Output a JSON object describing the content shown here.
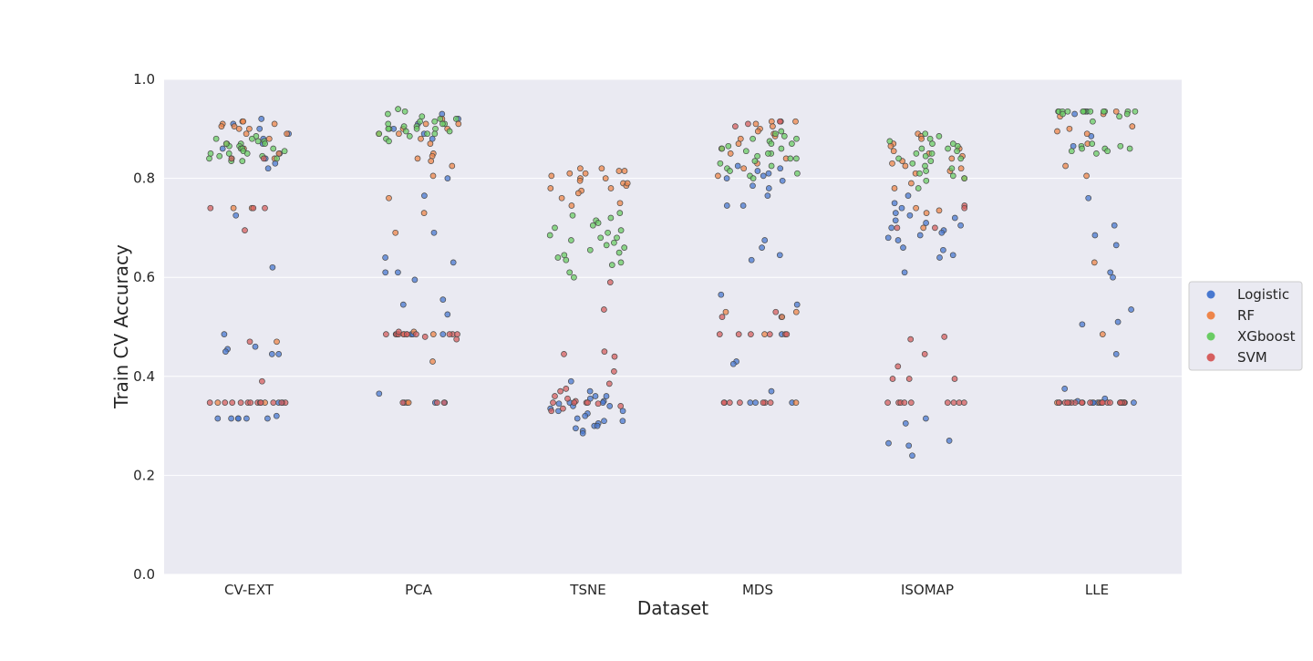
{
  "chart_data": {
    "type": "scatter",
    "kind": "strip",
    "title": "",
    "xlabel": "Dataset",
    "ylabel": "Train CV Accuracy",
    "ylim": [
      0.0,
      1.0
    ],
    "yticks": [
      0.0,
      0.2,
      0.4,
      0.6,
      0.8,
      1.0
    ],
    "grid": true,
    "legend_position": "right",
    "categories": [
      "CV-EXT",
      "PCA",
      "TSNE",
      "MDS",
      "ISOMAP",
      "LLE"
    ],
    "series": [
      {
        "name": "Logistic",
        "color": "#4878d0"
      },
      {
        "name": "RF",
        "color": "#ee854a"
      },
      {
        "name": "XGboost",
        "color": "#6acc64"
      },
      {
        "name": "SVM",
        "color": "#d65f5f"
      }
    ],
    "points": {
      "CV-EXT": {
        "Logistic": [
          0.92,
          0.91,
          0.9,
          0.89,
          0.88,
          0.87,
          0.86,
          0.85,
          0.84,
          0.83,
          0.82,
          0.725,
          0.62,
          0.485,
          0.46,
          0.455,
          0.45,
          0.445,
          0.445,
          0.32,
          0.315,
          0.315,
          0.315,
          0.315,
          0.315,
          0.315,
          0.347,
          0.347
        ],
        "RF": [
          0.915,
          0.915,
          0.91,
          0.91,
          0.905,
          0.905,
          0.9,
          0.9,
          0.89,
          0.89,
          0.88,
          0.87,
          0.86,
          0.85,
          0.84,
          0.74,
          0.74,
          0.47,
          0.347,
          0.347
        ],
        "XGboost": [
          0.885,
          0.88,
          0.875,
          0.87,
          0.87,
          0.865,
          0.865,
          0.86,
          0.86,
          0.855,
          0.855,
          0.85,
          0.85,
          0.845,
          0.845,
          0.84,
          0.84,
          0.835,
          0.835,
          0.87,
          0.86,
          0.85,
          0.88,
          0.84,
          0.875
        ],
        "SVM": [
          0.74,
          0.74,
          0.74,
          0.695,
          0.47,
          0.39,
          0.347,
          0.347,
          0.347,
          0.347,
          0.347,
          0.347,
          0.347,
          0.347,
          0.347,
          0.347,
          0.347,
          0.347,
          0.84,
          0.84
        ]
      },
      "PCA": {
        "Logistic": [
          0.93,
          0.92,
          0.91,
          0.9,
          0.89,
          0.88,
          0.8,
          0.765,
          0.69,
          0.64,
          0.63,
          0.61,
          0.61,
          0.595,
          0.555,
          0.545,
          0.525,
          0.485,
          0.485,
          0.485,
          0.485,
          0.365,
          0.347,
          0.347,
          0.347
        ],
        "RF": [
          0.92,
          0.91,
          0.91,
          0.9,
          0.9,
          0.89,
          0.89,
          0.88,
          0.87,
          0.85,
          0.845,
          0.84,
          0.835,
          0.825,
          0.805,
          0.76,
          0.73,
          0.69,
          0.43,
          0.49,
          0.485,
          0.485,
          0.347,
          0.347
        ],
        "XGboost": [
          0.94,
          0.935,
          0.93,
          0.925,
          0.92,
          0.915,
          0.915,
          0.91,
          0.91,
          0.905,
          0.905,
          0.9,
          0.9,
          0.895,
          0.895,
          0.89,
          0.89,
          0.885,
          0.88,
          0.875,
          0.91,
          0.9,
          0.92,
          0.9,
          0.89
        ],
        "SVM": [
          0.485,
          0.485,
          0.485,
          0.485,
          0.485,
          0.485,
          0.485,
          0.485,
          0.485,
          0.485,
          0.485,
          0.48,
          0.475,
          0.49,
          0.347,
          0.347,
          0.347
        ]
      },
      "TSNE": {
        "Logistic": [
          0.39,
          0.37,
          0.36,
          0.355,
          0.35,
          0.347,
          0.347,
          0.345,
          0.34,
          0.335,
          0.33,
          0.325,
          0.32,
          0.315,
          0.31,
          0.305,
          0.3,
          0.295,
          0.29,
          0.285,
          0.36,
          0.34,
          0.33,
          0.31,
          0.3
        ],
        "RF": [
          0.82,
          0.815,
          0.81,
          0.805,
          0.8,
          0.795,
          0.79,
          0.785,
          0.78,
          0.775,
          0.77,
          0.76,
          0.75,
          0.745,
          0.815,
          0.8,
          0.79,
          0.78,
          0.81,
          0.82
        ],
        "XGboost": [
          0.73,
          0.725,
          0.72,
          0.715,
          0.71,
          0.705,
          0.7,
          0.695,
          0.69,
          0.685,
          0.68,
          0.675,
          0.67,
          0.665,
          0.66,
          0.655,
          0.65,
          0.645,
          0.64,
          0.635,
          0.63,
          0.625,
          0.61,
          0.6,
          0.68
        ],
        "SVM": [
          0.59,
          0.535,
          0.45,
          0.445,
          0.44,
          0.41,
          0.385,
          0.375,
          0.37,
          0.36,
          0.355,
          0.35,
          0.347,
          0.347,
          0.347,
          0.347,
          0.345,
          0.34,
          0.335,
          0.33
        ]
      },
      "MDS": {
        "Logistic": [
          0.825,
          0.82,
          0.815,
          0.81,
          0.805,
          0.8,
          0.795,
          0.785,
          0.78,
          0.765,
          0.745,
          0.745,
          0.675,
          0.66,
          0.645,
          0.635,
          0.565,
          0.545,
          0.52,
          0.485,
          0.43,
          0.425,
          0.37,
          0.347,
          0.347,
          0.347
        ],
        "RF": [
          0.915,
          0.915,
          0.91,
          0.905,
          0.9,
          0.895,
          0.89,
          0.885,
          0.88,
          0.87,
          0.86,
          0.85,
          0.84,
          0.83,
          0.82,
          0.805,
          0.53,
          0.53,
          0.52,
          0.485,
          0.347
        ],
        "XGboost": [
          0.895,
          0.89,
          0.885,
          0.88,
          0.875,
          0.87,
          0.865,
          0.86,
          0.855,
          0.85,
          0.845,
          0.84,
          0.835,
          0.83,
          0.825,
          0.82,
          0.815,
          0.81,
          0.805,
          0.8,
          0.86,
          0.87,
          0.88,
          0.85,
          0.84
        ],
        "SVM": [
          0.915,
          0.915,
          0.91,
          0.905,
          0.53,
          0.52,
          0.485,
          0.485,
          0.485,
          0.485,
          0.485,
          0.485,
          0.347,
          0.347,
          0.347,
          0.347,
          0.347,
          0.347,
          0.347
        ]
      },
      "ISOMAP": {
        "Logistic": [
          0.765,
          0.75,
          0.74,
          0.73,
          0.725,
          0.72,
          0.715,
          0.71,
          0.705,
          0.7,
          0.695,
          0.69,
          0.685,
          0.68,
          0.675,
          0.66,
          0.655,
          0.645,
          0.64,
          0.61,
          0.315,
          0.305,
          0.27,
          0.265,
          0.26,
          0.24
        ],
        "RF": [
          0.89,
          0.885,
          0.88,
          0.87,
          0.865,
          0.86,
          0.855,
          0.85,
          0.845,
          0.84,
          0.835,
          0.83,
          0.825,
          0.82,
          0.815,
          0.81,
          0.8,
          0.79,
          0.78,
          0.74,
          0.735,
          0.73,
          0.7
        ],
        "XGboost": [
          0.89,
          0.885,
          0.88,
          0.875,
          0.87,
          0.865,
          0.86,
          0.855,
          0.85,
          0.845,
          0.84,
          0.835,
          0.83,
          0.825,
          0.82,
          0.815,
          0.81,
          0.805,
          0.8,
          0.795,
          0.78,
          0.86,
          0.87,
          0.85,
          0.84
        ],
        "SVM": [
          0.745,
          0.74,
          0.7,
          0.7,
          0.48,
          0.475,
          0.445,
          0.42,
          0.395,
          0.395,
          0.395,
          0.347,
          0.347,
          0.347,
          0.347,
          0.347,
          0.347,
          0.347,
          0.347,
          0.347
        ]
      },
      "LLE": {
        "Logistic": [
          0.935,
          0.93,
          0.885,
          0.865,
          0.76,
          0.705,
          0.685,
          0.665,
          0.61,
          0.6,
          0.535,
          0.51,
          0.505,
          0.445,
          0.375,
          0.355,
          0.35,
          0.347,
          0.347,
          0.347,
          0.347,
          0.347,
          0.347,
          0.347
        ],
        "RF": [
          0.935,
          0.93,
          0.925,
          0.905,
          0.9,
          0.895,
          0.89,
          0.87,
          0.825,
          0.805,
          0.63,
          0.485,
          0.347,
          0.347,
          0.347,
          0.347
        ],
        "XGboost": [
          0.935,
          0.935,
          0.935,
          0.935,
          0.935,
          0.935,
          0.935,
          0.935,
          0.935,
          0.935,
          0.935,
          0.935,
          0.93,
          0.93,
          0.925,
          0.915,
          0.87,
          0.865,
          0.865,
          0.86,
          0.86,
          0.86,
          0.855,
          0.855,
          0.85
        ],
        "SVM": [
          0.347,
          0.347,
          0.347,
          0.347,
          0.347,
          0.347,
          0.347,
          0.347,
          0.347,
          0.347,
          0.347,
          0.347,
          0.347,
          0.347,
          0.347,
          0.347,
          0.347,
          0.347,
          0.347,
          0.347
        ]
      }
    }
  }
}
